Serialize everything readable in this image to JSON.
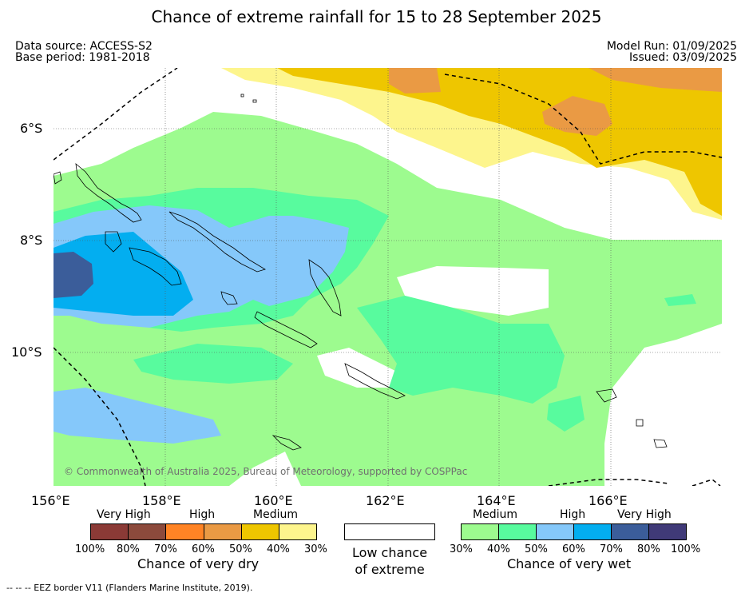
{
  "header": {
    "title": "Chance of extreme rainfall for 15 to 28 September 2025",
    "data_source": "Data source: ACCESS-S2",
    "base_period": "Base period: 1981-2018",
    "model_run": "Model Run: 01/09/2025",
    "issued": "Issued: 03/09/2025"
  },
  "map": {
    "lat_labels": [
      "6°S",
      "8°S",
      "10°S"
    ],
    "lon_labels": [
      "156°E",
      "158°E",
      "160°E",
      "162°E",
      "164°E",
      "166°E"
    ],
    "copyright": "© Commonwealth of Australia 2025, Bureau of Meteorology, supported by COSPPac",
    "colors": {
      "dry_very_high_100": "#8b3a36",
      "dry_very_high_80": "#8c4a3c",
      "dry_high_70": "#ff8425",
      "dry_high_60": "#ea9a44",
      "dry_medium_50": "#eec600",
      "dry_medium_40": "#fdf58d",
      "low": "#ffffff",
      "wet_medium_30": "#9dfb8f",
      "wet_medium_40": "#58fb9e",
      "wet_high_50": "#85c8fa",
      "wet_high_60": "#03aef0",
      "wet_very_high_70": "#3b5d9a",
      "wet_very_high_80": "#403a78"
    }
  },
  "legend": {
    "dry": {
      "group_labels": [
        "Very High",
        "High",
        "Medium"
      ],
      "pct_labels": [
        "100%",
        "80%",
        "70%",
        "60%",
        "50%",
        "40%",
        "30%"
      ],
      "caption": "Chance of very dry"
    },
    "low": {
      "caption_line1": "Low chance",
      "caption_line2": "of extreme"
    },
    "wet": {
      "group_labels": [
        "Medium",
        "High",
        "Very High"
      ],
      "pct_labels": [
        "30%",
        "40%",
        "50%",
        "60%",
        "70%",
        "80%",
        "100%"
      ],
      "caption": "Chance of very wet"
    }
  },
  "footnote": "--  --  -- EEZ border V11 (Flanders Marine Institute, 2019)."
}
